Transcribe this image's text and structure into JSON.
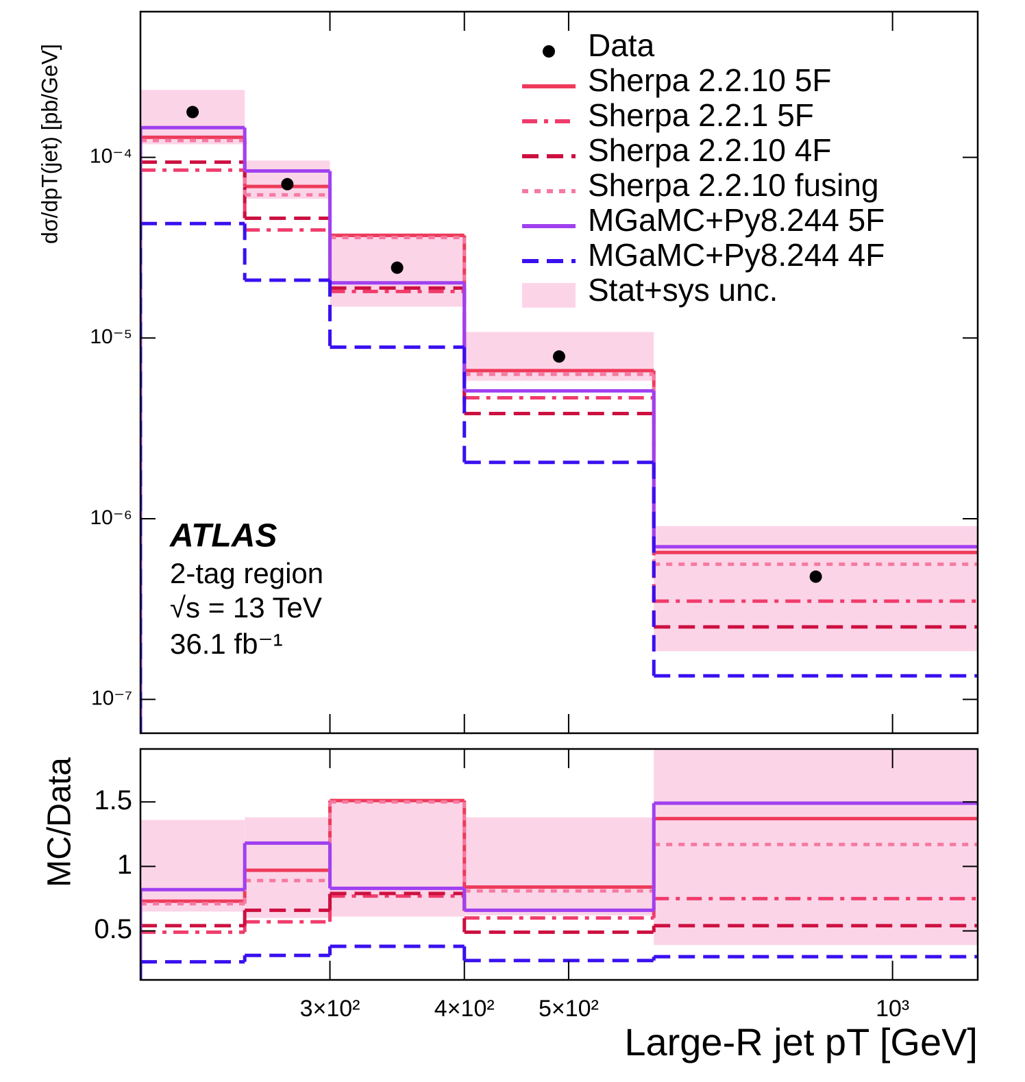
{
  "chart_data": [
    {
      "type": "histogram",
      "ylabel": "dσ/dpT(jet)  [pb/GeV]",
      "bins": [
        200,
        250,
        300,
        400,
        600,
        1200
      ],
      "xlim": [
        200,
        1200
      ],
      "log_x": true,
      "ylim": [
        6.5e-08,
        0.00064
      ],
      "log_y": true,
      "yticks": [
        {
          "value": 1e-07,
          "label": "10⁻⁷"
        },
        {
          "value": 1e-06,
          "label": "10⁻⁶"
        },
        {
          "value": 1e-05,
          "label": "10⁻⁵"
        },
        {
          "value": 0.0001,
          "label": "10⁻⁴"
        }
      ],
      "legend": "upper right",
      "annotations": [
        "ATLAS",
        "2-tag region",
        "√s = 13 TeV",
        "36.1 fb⁻¹"
      ],
      "series": [
        {
          "name": "Data",
          "color": "#000000",
          "style": "points",
          "values": [
            0.000178,
            7.1e-05,
            2.45e-05,
            7.9e-06,
            4.78e-07
          ]
        },
        {
          "name": "Sherpa 2.2.10 5F",
          "color": "#ee3b5b",
          "style": "solid",
          "values": [
            0.000129,
            6.9e-05,
            3.7e-05,
            6.6e-06,
            6.5e-07
          ]
        },
        {
          "name": "Sherpa 2.2.1 5F",
          "color": "#f03c6c",
          "style": "dashdot",
          "values": [
            8.5e-05,
            3.96e-05,
            1.81e-05,
            4.67e-06,
            3.5e-07
          ]
        },
        {
          "name": "Sherpa 2.2.10 4F",
          "color": "#cc1040",
          "style": "dashed",
          "values": [
            9.4e-05,
            4.6e-05,
            1.89e-05,
            3.82e-06,
            2.52e-07
          ]
        },
        {
          "name": "Sherpa 2.2.10 fusing",
          "color": "#f57aa0",
          "style": "dotted",
          "values": [
            0.000124,
            6.2e-05,
            3.6e-05,
            6.3e-06,
            5.6e-07
          ]
        },
        {
          "name": "MGaMC+Py8.244 5F",
          "color": "#a040f0",
          "style": "solid",
          "values": [
            0.000146,
            8.4e-05,
            2.02e-05,
            5.1e-06,
            7e-07
          ]
        },
        {
          "name": "MGaMC+Py8.244 4F",
          "color": "#3a10f0",
          "style": "dashed",
          "values": [
            4.3e-05,
            2.09e-05,
            8.9e-06,
            2.05e-06,
            1.35e-07
          ]
        },
        {
          "name": "Stat+sys unc.",
          "color": "#fcd4e8",
          "style": "band",
          "values": [
            0.000118,
            5.9e-05,
            1.49e-05,
            5.8e-06,
            1.85e-07
          ],
          "high": [
            0.000236,
            9.6e-05,
            3.8e-05,
            1.08e-05,
            9.1e-07
          ]
        }
      ]
    },
    {
      "type": "histogram",
      "xlabel": "Large-R jet pT  [GeV]",
      "ylabel": "MC/Data",
      "bins": [
        200,
        250,
        300,
        400,
        600,
        1200
      ],
      "xlim": [
        200,
        1200
      ],
      "log_x": true,
      "xticks": [
        {
          "value": 300,
          "label": "3×10²"
        },
        {
          "value": 400,
          "label": "4×10²"
        },
        {
          "value": 500,
          "label": "5×10²"
        },
        {
          "value": 1000,
          "label": "10³"
        }
      ],
      "ylim": [
        0.12,
        1.91
      ],
      "yticks": [
        0.5,
        1,
        1.5
      ],
      "reference_line": 1,
      "series": [
        {
          "color": "#fcd4e8",
          "style": "band",
          "values": [
            0.65,
            0.6,
            0.61,
            0.62,
            0.39
          ],
          "high": [
            1.36,
            1.38,
            1.52,
            1.38,
            2.0
          ]
        },
        {
          "color": "#ee3b5b",
          "style": "solid",
          "values": [
            0.73,
            0.97,
            1.51,
            0.84,
            1.37
          ]
        },
        {
          "color": "#f03c6c",
          "style": "dashdot",
          "values": [
            0.49,
            0.57,
            0.77,
            0.6,
            0.75
          ]
        },
        {
          "color": "#cc1040",
          "style": "dashed",
          "values": [
            0.54,
            0.66,
            0.79,
            0.49,
            0.54
          ]
        },
        {
          "color": "#f57aa0",
          "style": "dotted",
          "values": [
            0.71,
            0.89,
            1.5,
            0.81,
            1.17
          ]
        },
        {
          "color": "#a040f0",
          "style": "solid",
          "values": [
            0.82,
            1.18,
            0.83,
            0.66,
            1.49
          ]
        },
        {
          "color": "#3a10f0",
          "style": "dashed",
          "values": [
            0.26,
            0.31,
            0.38,
            0.27,
            0.3
          ]
        }
      ]
    }
  ]
}
